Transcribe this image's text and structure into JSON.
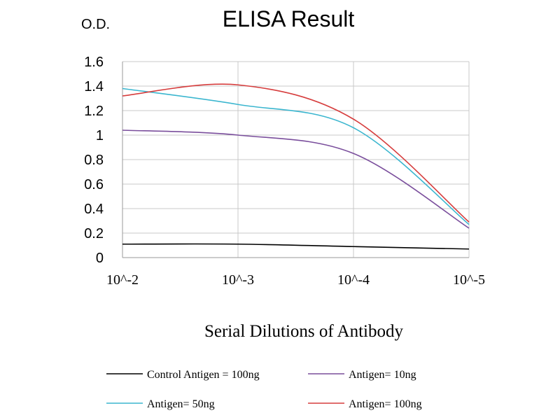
{
  "chart_data": {
    "type": "line",
    "title": "ELISA Result",
    "ylabel": "O.D.",
    "xlabel": "Serial Dilutions of Antibody",
    "x": [
      "10^-2",
      "10^-3",
      "10^-4",
      "10^-5"
    ],
    "ylim": [
      0,
      1.6
    ],
    "yticks": [
      "0",
      "0.2",
      "0.4",
      "0.6",
      "0.8",
      "1",
      "1.2",
      "1.4",
      "1.6"
    ],
    "grid": true,
    "legend_position": "bottom",
    "series": [
      {
        "name": "Control Antigen = 100ng",
        "color": "#000000",
        "values": [
          0.11,
          0.11,
          0.09,
          0.07
        ]
      },
      {
        "name": "Antigen= 10ng",
        "color": "#7a4e9c",
        "values": [
          1.04,
          1.0,
          0.85,
          0.24
        ]
      },
      {
        "name": "Antigen= 50ng",
        "color": "#3bb6cf",
        "values": [
          1.38,
          1.25,
          1.06,
          0.27
        ]
      },
      {
        "name": "Antigen= 100ng",
        "color": "#d63d3d",
        "values": [
          1.32,
          1.41,
          1.13,
          0.29
        ]
      }
    ]
  }
}
